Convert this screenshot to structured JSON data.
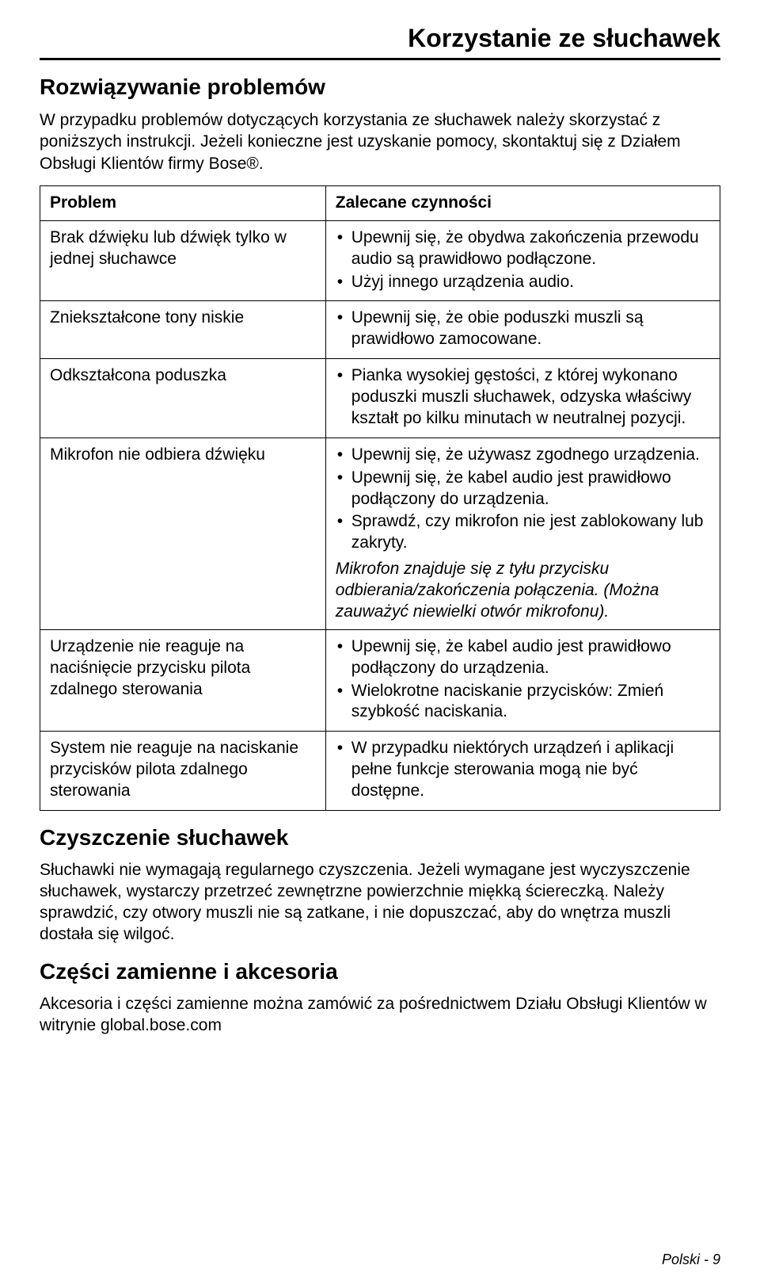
{
  "page": {
    "header_title": "Korzystanie ze słuchawek",
    "footer": "Polski - 9"
  },
  "troubleshoot": {
    "heading": "Rozwiązywanie problemów",
    "intro": "W przypadku problemów dotyczących korzystania ze słuchawek należy skorzystać z poniższych instrukcji. Jeżeli konieczne jest uzyskanie pomocy, skontaktuj się z Działem Obsługi Klientów firmy Bose®.",
    "col_problem": "Problem",
    "col_action": "Zalecane czynności",
    "rows": {
      "r0": {
        "problem": "Brak dźwięku lub dźwięk tylko w jednej słuchawce",
        "b0": "Upewnij się, że obydwa zakończenia przewodu audio są prawidłowo podłączone.",
        "b1": "Użyj innego urządzenia audio."
      },
      "r1": {
        "problem": "Zniekształcone tony niskie",
        "b0": "Upewnij się, że obie poduszki muszli są prawidłowo zamocowane."
      },
      "r2": {
        "problem": "Odkształcona poduszka",
        "b0": "Pianka wysokiej gęstości, z której wykonano poduszki muszli słuchawek, odzyska właściwy kształt po kilku minutach w neutralnej pozycji."
      },
      "r3": {
        "problem": "Mikrofon nie odbiera dźwięku",
        "b0": "Upewnij się, że używasz zgodnego urządzenia.",
        "b1": "Upewnij się, że kabel audio jest prawidłowo podłączony do urządzenia.",
        "b2": "Sprawdź, czy mikrofon nie jest zablokowany lub zakryty.",
        "note": "Mikrofon znajduje się z tyłu przycisku odbierania/zakończenia połączenia. (Można zauważyć niewielki otwór mikrofonu)."
      },
      "r4": {
        "problem": "Urządzenie nie reaguje na naciśnięcie przycisku pilota zdalnego sterowania",
        "b0": "Upewnij się, że kabel audio jest prawidłowo podłączony do urządzenia.",
        "b1": "Wielokrotne naciskanie przycisków: Zmień szybkość naciskania."
      },
      "r5": {
        "problem": "System nie reaguje na naciskanie przycisków pilota zdalnego sterowania",
        "b0": "W przypadku niektórych urządzeń i aplikacji pełne funkcje sterowania mogą nie być dostępne."
      }
    }
  },
  "cleaning": {
    "heading": "Czyszczenie słuchawek",
    "text": "Słuchawki nie wymagają regularnego czyszczenia. Jeżeli wymagane jest wyczyszczenie słuchawek, wystarczy przetrzeć zewnętrzne powierzchnie miękką ściereczką. Należy sprawdzić, czy otwory muszli nie są zatkane, i nie dopuszczać, aby do wnętrza muszli dostała się wilgoć."
  },
  "parts": {
    "heading": "Części zamienne i akcesoria",
    "text": "Akcesoria i części zamienne można zamówić za pośrednictwem Działu Obsługi Klientów w witrynie global.bose.com"
  }
}
